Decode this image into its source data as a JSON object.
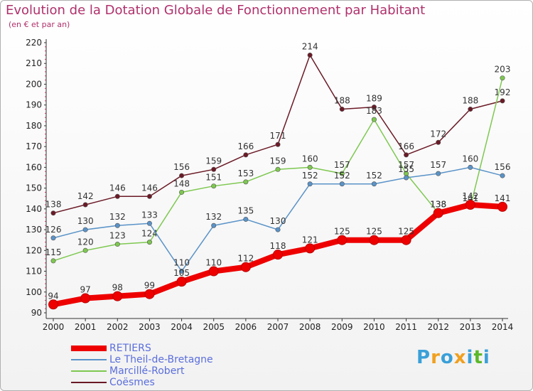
{
  "title": "Evolution de la Dotation Globale de Fonctionnement par Habitant",
  "subtitle": "(en € et par an)",
  "logo": {
    "text": "Proxiti",
    "letters": [
      "P",
      "r",
      "o",
      "x",
      "i",
      "t",
      "i"
    ],
    "colors": [
      "#3aa0d8",
      "#f0a020",
      "#3aa0d8",
      "#f0a020",
      "#3aa0d8",
      "#5ab82a",
      "#3aa0d8"
    ]
  },
  "chart_data": {
    "type": "line",
    "title": "Evolution de la Dotation Globale de Fonctionnement par Habitant",
    "subtitle": "(en € et par an)",
    "xlabel": "",
    "ylabel": "",
    "x": [
      "2000",
      "2001",
      "2002",
      "2003",
      "2004",
      "2005",
      "2006",
      "2007",
      "2008",
      "2009",
      "2010",
      "2011",
      "2012",
      "2013",
      "2014"
    ],
    "ylim": [
      90,
      220
    ],
    "yticks": [
      90,
      100,
      110,
      120,
      130,
      140,
      150,
      160,
      170,
      180,
      190,
      200,
      210,
      220
    ],
    "grid": false,
    "legend_position": "bottom-left",
    "series": [
      {
        "name": "Coësmes",
        "color": "#6b1a26",
        "values": [
          138,
          142,
          146,
          146,
          156,
          159,
          166,
          171,
          214,
          188,
          189,
          166,
          172,
          188,
          192
        ],
        "labels": [
          "138",
          "142",
          "146",
          "146",
          "156",
          "159",
          "166",
          "171",
          "214",
          "188",
          "189",
          "166",
          "172",
          "188",
          "192"
        ]
      },
      {
        "name": "Marcillé-Robert",
        "color": "#7ec850",
        "values": [
          115,
          120,
          123,
          124,
          148,
          151,
          153,
          159,
          160,
          157,
          183,
          157,
          138,
          141,
          203
        ],
        "labels": [
          "115",
          "120",
          "123",
          "124",
          "148",
          "151",
          "153",
          "159",
          "160",
          "157",
          "183",
          "157",
          "138",
          "141",
          "203"
        ]
      },
      {
        "name": "Le Theil-de-Bretagne",
        "color": "#5a93c8",
        "values": [
          126,
          130,
          132,
          133,
          110,
          132,
          135,
          130,
          152,
          152,
          152,
          155,
          157,
          160,
          156
        ],
        "labels": [
          "126",
          "130",
          "132",
          "133",
          "110",
          "132",
          "135",
          "130",
          "152",
          "152",
          "152",
          "155",
          "157",
          "160",
          "156"
        ]
      },
      {
        "name": "RETIERS",
        "color": "#ee0000",
        "values": [
          94,
          97,
          98,
          99,
          105,
          110,
          112,
          118,
          121,
          125,
          125,
          125,
          138,
          142,
          141
        ],
        "labels": [
          "94",
          "97",
          "98",
          "99",
          "105",
          "110",
          "112",
          "118",
          "121",
          "125",
          "125",
          "125",
          "138",
          "142",
          "141"
        ]
      }
    ],
    "legend_order": [
      "RETIERS",
      "Le Theil-de-Bretagne",
      "Marcillé-Robert",
      "Coësmes"
    ]
  }
}
